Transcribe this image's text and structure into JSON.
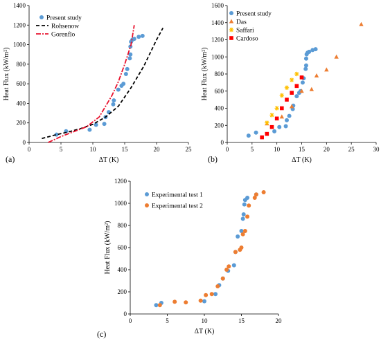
{
  "colors": {
    "blue": "#5b9bd5",
    "orange": "#ed7d31",
    "yellow": "#ffc000",
    "red": "#ff0000",
    "black": "#000000",
    "dashred": "#e8112d"
  },
  "chart_data": [
    {
      "id": "a",
      "type": "scatter",
      "panel_label": "(a)",
      "xlabel": "ΔT (K)",
      "ylabel": "Heat Flux (kW/m²)",
      "xlim": [
        0,
        25
      ],
      "ylim": [
        0,
        1400
      ],
      "xticks": [
        0,
        5,
        10,
        15,
        20,
        25
      ],
      "yticks": [
        0,
        200,
        400,
        600,
        800,
        1000,
        1200,
        1400
      ],
      "legend_position": "top-left",
      "series": [
        {
          "name": "Present study",
          "kind": "points",
          "marker": "circle",
          "color": "#5b9bd5",
          "points": [
            [
              4.3,
              80
            ],
            [
              5.8,
              115
            ],
            [
              9.5,
              130
            ],
            [
              10.5,
              180
            ],
            [
              11.8,
              190
            ],
            [
              12,
              260
            ],
            [
              12.5,
              310
            ],
            [
              13.2,
              390
            ],
            [
              13.3,
              430
            ],
            [
              14,
              540
            ],
            [
              14.5,
              580
            ],
            [
              14.8,
              600
            ],
            [
              15.2,
              700
            ],
            [
              15.4,
              750
            ],
            [
              15.8,
              860
            ],
            [
              15.9,
              900
            ],
            [
              15.9,
              980
            ],
            [
              16,
              1030
            ],
            [
              16.2,
              1050
            ],
            [
              16.5,
              1060
            ],
            [
              17.2,
              1080
            ],
            [
              17.8,
              1090
            ]
          ]
        },
        {
          "name": "Rohsenow",
          "kind": "line",
          "dash": "5,3",
          "color": "#000000",
          "points": [
            [
              2,
              40
            ],
            [
              4,
              75
            ],
            [
              6,
              105
            ],
            [
              8,
              140
            ],
            [
              10,
              185
            ],
            [
              12,
              260
            ],
            [
              14,
              370
            ],
            [
              16,
              560
            ],
            [
              18,
              780
            ],
            [
              20,
              1050
            ],
            [
              21,
              1170
            ]
          ]
        },
        {
          "name": "Gorenflo",
          "kind": "line",
          "dash": "7,2,2,2",
          "color": "#e8112d",
          "points": [
            [
              3,
              0
            ],
            [
              5,
              60
            ],
            [
              7,
              110
            ],
            [
              9,
              160
            ],
            [
              11,
              260
            ],
            [
              13,
              480
            ],
            [
              14,
              620
            ],
            [
              15,
              800
            ],
            [
              16,
              1000
            ],
            [
              16.5,
              1200
            ]
          ]
        }
      ]
    },
    {
      "id": "b",
      "type": "scatter",
      "panel_label": "(b)",
      "xlabel": "ΔT (K)",
      "ylabel": "Heat Flux (kW/m²)",
      "xlim": [
        0,
        30
      ],
      "ylim": [
        0,
        1600
      ],
      "xticks": [
        0,
        5,
        10,
        15,
        20,
        25,
        30
      ],
      "yticks": [
        0,
        200,
        400,
        600,
        800,
        1000,
        1200,
        1400,
        1600
      ],
      "legend_position": "top-left",
      "series": [
        {
          "name": "Present study",
          "marker": "circle",
          "color": "#5b9bd5",
          "points": [
            [
              4.3,
              80
            ],
            [
              5.8,
              115
            ],
            [
              9.5,
              130
            ],
            [
              10.5,
              180
            ],
            [
              11.8,
              190
            ],
            [
              12,
              260
            ],
            [
              12.5,
              310
            ],
            [
              13.2,
              390
            ],
            [
              13.3,
              430
            ],
            [
              14,
              540
            ],
            [
              14.5,
              580
            ],
            [
              14.8,
              600
            ],
            [
              15.2,
              700
            ],
            [
              15.4,
              750
            ],
            [
              15.8,
              860
            ],
            [
              15.9,
              900
            ],
            [
              15.9,
              980
            ],
            [
              16,
              1030
            ],
            [
              16.2,
              1050
            ],
            [
              16.5,
              1060
            ],
            [
              17.2,
              1080
            ],
            [
              17.8,
              1090
            ]
          ]
        },
        {
          "name": "Das",
          "marker": "triangle",
          "color": "#ed7d31",
          "points": [
            [
              8,
              220
            ],
            [
              11,
              300
            ],
            [
              13,
              420
            ],
            [
              15,
              600
            ],
            [
              17,
              620
            ],
            [
              18,
              780
            ],
            [
              20,
              850
            ],
            [
              22,
              1000
            ],
            [
              27,
              1380
            ]
          ]
        },
        {
          "name": "Saffari",
          "marker": "star",
          "color": "#ffc000",
          "points": [
            [
              8,
              230
            ],
            [
              9,
              320
            ],
            [
              10,
              400
            ],
            [
              11,
              550
            ],
            [
              12,
              640
            ],
            [
              13,
              730
            ],
            [
              14,
              800
            ]
          ]
        },
        {
          "name": "Cardoso",
          "marker": "square",
          "color": "#ff0000",
          "points": [
            [
              7,
              60
            ],
            [
              8,
              100
            ],
            [
              9,
              180
            ],
            [
              10,
              280
            ],
            [
              11,
              400
            ],
            [
              12,
              500
            ],
            [
              13,
              580
            ],
            [
              14,
              660
            ],
            [
              15,
              760
            ]
          ]
        }
      ]
    },
    {
      "id": "c",
      "type": "scatter",
      "panel_label": "(c)",
      "xlabel": "ΔT (K)",
      "ylabel": "Heat Flux (kW/m²)",
      "xlim": [
        0,
        20
      ],
      "ylim": [
        0,
        1200
      ],
      "xticks": [
        0,
        5,
        10,
        15,
        20
      ],
      "yticks": [
        0,
        200,
        400,
        600,
        800,
        1000,
        1200
      ],
      "legend_position": "top-left",
      "series": [
        {
          "name": "Experimental test 1",
          "marker": "circle",
          "color": "#5b9bd5",
          "points": [
            [
              3.5,
              80
            ],
            [
              4.2,
              100
            ],
            [
              10,
              115
            ],
            [
              11.5,
              180
            ],
            [
              12,
              260
            ],
            [
              12.5,
              320
            ],
            [
              13.2,
              390
            ],
            [
              14,
              440
            ],
            [
              14.2,
              560
            ],
            [
              14.5,
              700
            ],
            [
              15,
              750
            ],
            [
              15.2,
              860
            ],
            [
              15.3,
              900
            ],
            [
              15.4,
              990
            ],
            [
              15.5,
              1030
            ],
            [
              15.8,
              1050
            ],
            [
              17,
              1080
            ]
          ]
        },
        {
          "name": "Experimental test 2",
          "marker": "circle",
          "color": "#ed7d31",
          "points": [
            [
              4,
              80
            ],
            [
              6,
              110
            ],
            [
              7.5,
              105
            ],
            [
              9.5,
              120
            ],
            [
              10.2,
              170
            ],
            [
              11,
              180
            ],
            [
              11.8,
              250
            ],
            [
              12.5,
              320
            ],
            [
              13,
              400
            ],
            [
              13.3,
              430
            ],
            [
              14.2,
              560
            ],
            [
              14.8,
              580
            ],
            [
              15,
              600
            ],
            [
              15.2,
              720
            ],
            [
              15.5,
              750
            ],
            [
              15.8,
              880
            ],
            [
              16,
              980
            ],
            [
              16.8,
              1050
            ],
            [
              17,
              1080
            ],
            [
              18,
              1100
            ]
          ]
        }
      ]
    }
  ]
}
